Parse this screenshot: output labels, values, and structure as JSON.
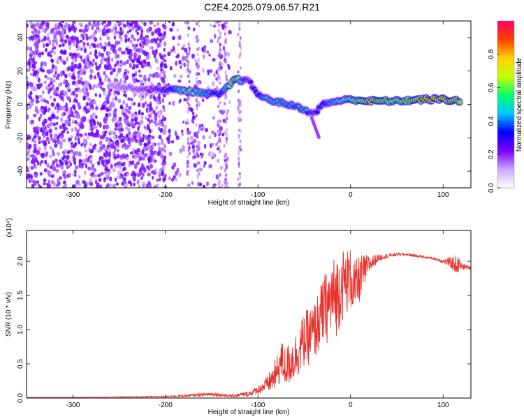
{
  "title": "C2E4.2025.079.06.57.R21",
  "chart_data": [
    {
      "type": "heatmap",
      "xlabel": "Height of straight line (km)",
      "ylabel": "Frequency (Hz)",
      "xlim": [
        -350,
        130
      ],
      "ylim": [
        -50,
        50
      ],
      "xticks": [
        -300,
        -200,
        -100,
        0,
        100
      ],
      "yticks": [
        -40,
        -20,
        0,
        20,
        40
      ],
      "colorbar": {
        "label": "Normalized spectral amplitude",
        "range": [
          0,
          1
        ],
        "ticks": [
          0.0,
          0.2,
          0.4,
          0.6,
          0.8
        ],
        "tick_labels": [
          "0.0",
          "0.2",
          "0.4",
          "0.6",
          "0.8"
        ],
        "colors": [
          "#ffffff",
          "#c9a8ff",
          "#7a00ff",
          "#0000ff",
          "#00c8ff",
          "#00ff6a",
          "#c8ff00",
          "#ffd000",
          "#ff4000",
          "#ff0066"
        ]
      },
      "noise_region_x": [
        -350,
        -130
      ],
      "ridge": [
        {
          "x": -260,
          "y": 12,
          "amp": 0.2
        },
        {
          "x": -240,
          "y": 10,
          "amp": 0.25
        },
        {
          "x": -220,
          "y": 9,
          "amp": 0.3
        },
        {
          "x": -195,
          "y": 9,
          "amp": 0.45
        },
        {
          "x": -175,
          "y": 8,
          "amp": 0.7
        },
        {
          "x": -160,
          "y": 7,
          "amp": 0.55
        },
        {
          "x": -140,
          "y": 6,
          "amp": 0.45
        },
        {
          "x": -125,
          "y": 15,
          "amp": 0.85
        },
        {
          "x": -110,
          "y": 14,
          "amp": 0.35
        },
        {
          "x": -100,
          "y": 6,
          "amp": 0.45
        },
        {
          "x": -90,
          "y": 3,
          "amp": 0.6
        },
        {
          "x": -75,
          "y": 1,
          "amp": 0.55
        },
        {
          "x": -60,
          "y": -1,
          "amp": 0.5
        },
        {
          "x": -50,
          "y": -3,
          "amp": 0.55
        },
        {
          "x": -40,
          "y": -6,
          "amp": 0.4
        },
        {
          "x": -30,
          "y": 0,
          "amp": 0.45
        },
        {
          "x": -15,
          "y": 2,
          "amp": 0.6
        },
        {
          "x": 0,
          "y": 3,
          "amp": 0.7
        },
        {
          "x": 20,
          "y": 2,
          "amp": 0.9
        },
        {
          "x": 50,
          "y": 2,
          "amp": 0.75
        },
        {
          "x": 80,
          "y": 3,
          "amp": 0.9
        },
        {
          "x": 100,
          "y": 3,
          "amp": 0.95
        },
        {
          "x": 120,
          "y": 2,
          "amp": 0.8
        }
      ]
    },
    {
      "type": "line",
      "xlabel": "Height of straight line (km)",
      "ylabel": "SNR (10 * v/v)",
      "y_multiplier": "(x10⁴)",
      "xlim": [
        -350,
        130
      ],
      "ylim": [
        0,
        2.45
      ],
      "xticks": [
        -300,
        -200,
        -100,
        0,
        100
      ],
      "yticks": [
        0.0,
        0.5,
        1.0,
        1.5,
        2.0
      ],
      "ytick_labels": [
        "0.0",
        "0.5",
        "1.0",
        "1.5",
        "2.0"
      ],
      "line_color": "#e8302a",
      "series": [
        {
          "x": [
            -350,
            -300,
            -250,
            -200,
            -170,
            -150,
            -130,
            -110,
            -100,
            -90,
            -80,
            -75,
            -70,
            -60,
            -50,
            -40,
            -35,
            -30,
            -25,
            -20,
            -15,
            -10,
            -5,
            0,
            5,
            10,
            20,
            30,
            40,
            50,
            60,
            70,
            80,
            90,
            100,
            110,
            115,
            120,
            130
          ],
          "y": [
            0.01,
            0.01,
            0.015,
            0.02,
            0.04,
            0.06,
            0.03,
            0.06,
            0.12,
            0.2,
            0.35,
            0.55,
            0.45,
            0.6,
            0.85,
            0.95,
            1.1,
            1.25,
            1.35,
            1.45,
            1.5,
            1.65,
            1.7,
            1.75,
            1.6,
            1.75,
            1.95,
            2.05,
            2.08,
            2.1,
            2.1,
            2.08,
            2.06,
            2.04,
            2.0,
            1.97,
            1.95,
            1.93,
            1.9
          ],
          "spread": [
            0,
            0,
            0.005,
            0.01,
            0.02,
            0.03,
            0.02,
            0.04,
            0.06,
            0.12,
            0.25,
            0.3,
            0.3,
            0.35,
            0.4,
            0.45,
            0.45,
            0.5,
            0.55,
            0.6,
            0.6,
            0.55,
            0.5,
            0.45,
            0.4,
            0.35,
            0.15,
            0.05,
            0.03,
            0.02,
            0.02,
            0.02,
            0.02,
            0.02,
            0.03,
            0.1,
            0.15,
            0.05,
            0.02
          ]
        }
      ]
    }
  ]
}
